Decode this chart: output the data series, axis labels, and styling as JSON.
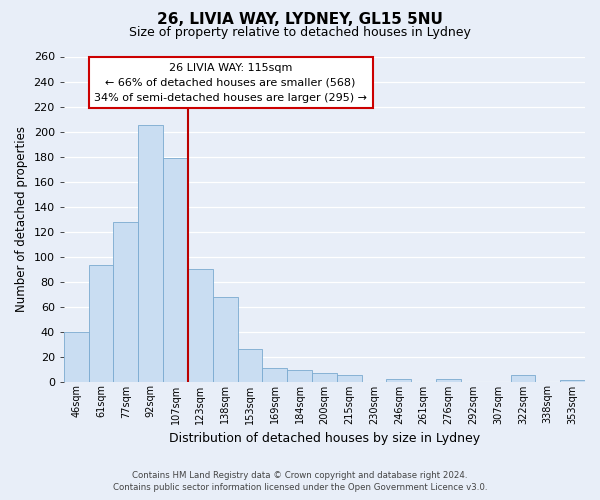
{
  "title": "26, LIVIA WAY, LYDNEY, GL15 5NU",
  "subtitle": "Size of property relative to detached houses in Lydney",
  "xlabel": "Distribution of detached houses by size in Lydney",
  "ylabel": "Number of detached properties",
  "categories": [
    "46sqm",
    "61sqm",
    "77sqm",
    "92sqm",
    "107sqm",
    "123sqm",
    "138sqm",
    "153sqm",
    "169sqm",
    "184sqm",
    "200sqm",
    "215sqm",
    "230sqm",
    "246sqm",
    "261sqm",
    "276sqm",
    "292sqm",
    "307sqm",
    "322sqm",
    "338sqm",
    "353sqm"
  ],
  "values": [
    40,
    93,
    128,
    205,
    179,
    90,
    68,
    26,
    11,
    9,
    7,
    5,
    0,
    2,
    0,
    2,
    0,
    0,
    5,
    0,
    1
  ],
  "bar_color": "#c9ddf2",
  "bar_edge_color": "#7aaad0",
  "vline_x_idx": 4.5,
  "vline_color": "#bb0000",
  "annotation_title": "26 LIVIA WAY: 115sqm",
  "annotation_line1": "← 66% of detached houses are smaller (568)",
  "annotation_line2": "34% of semi-detached houses are larger (295) →",
  "annotation_box_color": "#ffffff",
  "annotation_box_edge": "#cc0000",
  "ylim": [
    0,
    260
  ],
  "yticks": [
    0,
    20,
    40,
    60,
    80,
    100,
    120,
    140,
    160,
    180,
    200,
    220,
    240,
    260
  ],
  "footer_line1": "Contains HM Land Registry data © Crown copyright and database right 2024.",
  "footer_line2": "Contains public sector information licensed under the Open Government Licence v3.0.",
  "fig_bg_color": "#e8eef8",
  "plot_bg_color": "#e8eef8"
}
